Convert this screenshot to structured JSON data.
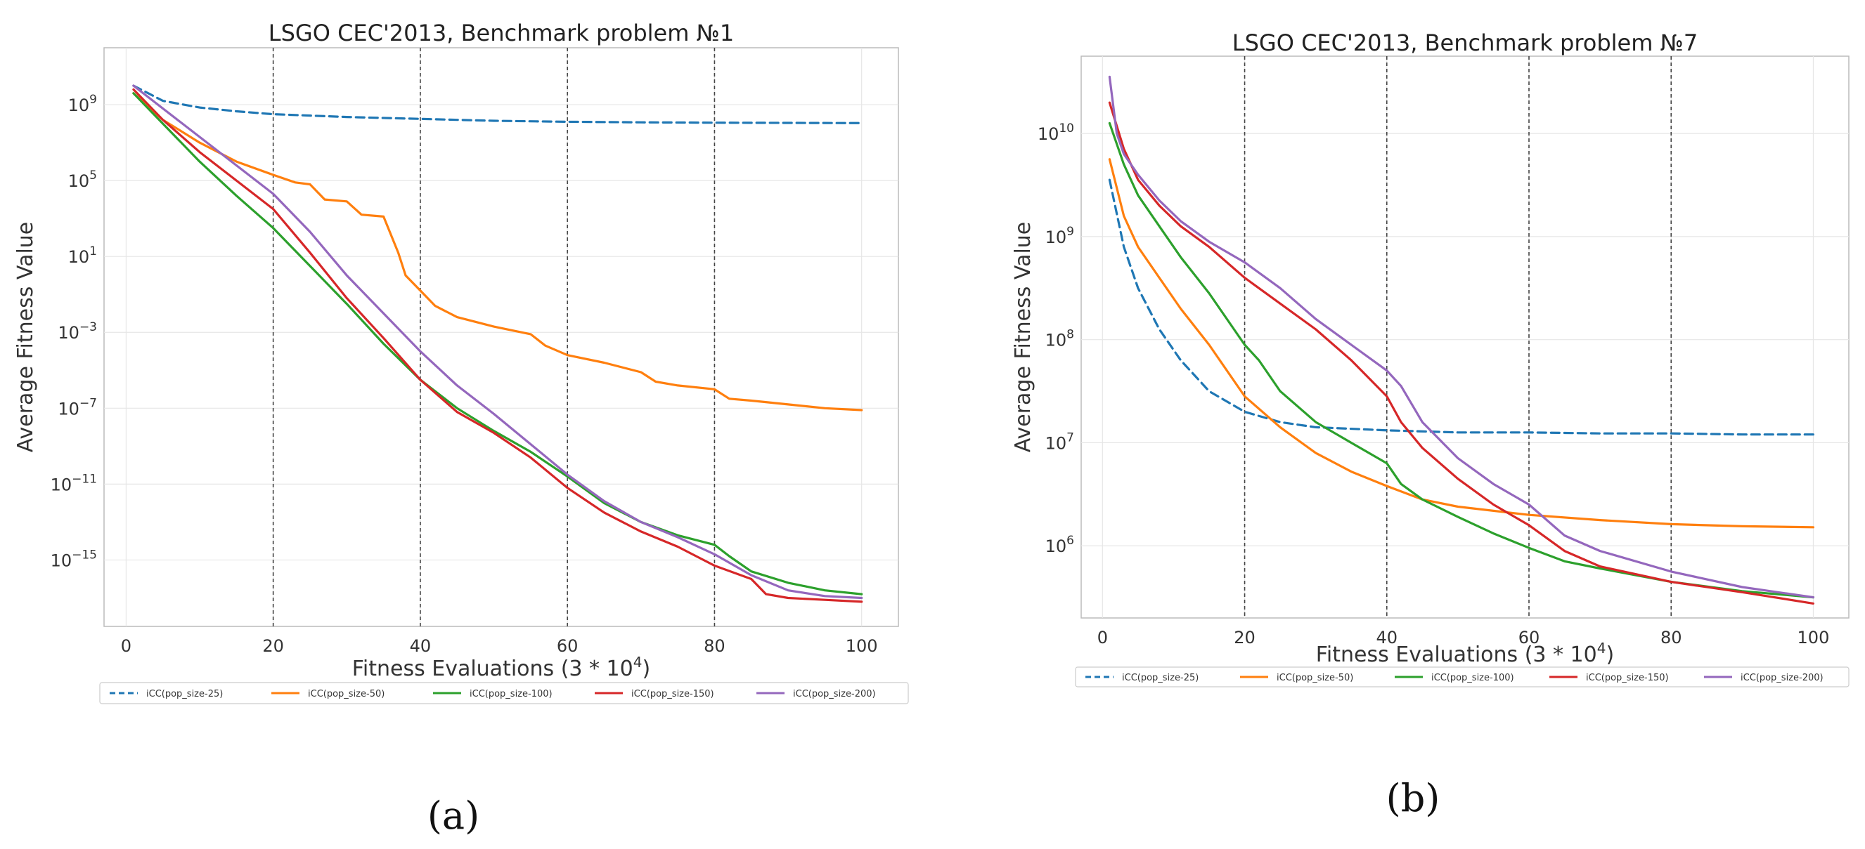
{
  "chart_data": [
    {
      "type": "line",
      "panel_label": "(a)",
      "title": "LSGO CEC'2013, Benchmark problem №1",
      "xlabel": "Fitness Evaluations (3 * 10^4)",
      "xlabel_base": "Fitness Evaluations (3",
      "xlabel_mult": "* 10",
      "xlabel_exp": "4",
      "ylabel": "Average Fitness Value",
      "yscale": "log",
      "xlim": [
        -3,
        105
      ],
      "ylim_exp": [
        -18.5,
        12
      ],
      "x_ticks": [
        0,
        20,
        40,
        60,
        80,
        100
      ],
      "y_ticks": [
        {
          "base": "10",
          "exp": "9",
          "value_exp": 9
        },
        {
          "base": "10",
          "exp": "5",
          "value_exp": 5
        },
        {
          "base": "10",
          "exp": "1",
          "value_exp": 1
        },
        {
          "base": "10",
          "exp": "−3",
          "value_exp": -3
        },
        {
          "base": "10",
          "exp": "−7",
          "value_exp": -7
        },
        {
          "base": "10",
          "exp": "−11",
          "value_exp": -11
        },
        {
          "base": "10",
          "exp": "−15",
          "value_exp": -15
        }
      ],
      "vlines": [
        20,
        40,
        60,
        80
      ],
      "grid": true,
      "legend_position": "below",
      "series": [
        {
          "name": "iCC(pop_size-25)",
          "color": "#1f77b4",
          "dash": true,
          "x": [
            1,
            5,
            10,
            15,
            20,
            30,
            40,
            50,
            60,
            70,
            80,
            90,
            100
          ],
          "log10y": [
            10.0,
            9.2,
            8.85,
            8.65,
            8.5,
            8.35,
            8.25,
            8.15,
            8.1,
            8.07,
            8.05,
            8.04,
            8.03
          ]
        },
        {
          "name": "iCC(pop_size-50)",
          "color": "#ff7f0e",
          "dash": false,
          "x": [
            1,
            5,
            10,
            15,
            20,
            23,
            25,
            27,
            30,
            32,
            35,
            37,
            38,
            40,
            42,
            45,
            50,
            55,
            57,
            60,
            65,
            70,
            72,
            75,
            80,
            82,
            85,
            90,
            95,
            100
          ],
          "log10y": [
            9.6,
            8.2,
            7.0,
            6.0,
            5.3,
            4.9,
            4.8,
            4.0,
            3.9,
            3.2,
            3.1,
            1.2,
            0.0,
            -0.8,
            -1.6,
            -2.2,
            -2.7,
            -3.1,
            -3.7,
            -4.2,
            -4.6,
            -5.1,
            -5.6,
            -5.8,
            -6.0,
            -6.5,
            -6.6,
            -6.8,
            -7.0,
            -7.1
          ]
        },
        {
          "name": "iCC(pop_size-100)",
          "color": "#2ca02c",
          "dash": false,
          "x": [
            1,
            5,
            10,
            15,
            20,
            25,
            30,
            35,
            40,
            45,
            50,
            55,
            60,
            65,
            70,
            75,
            80,
            82,
            85,
            90,
            95,
            100
          ],
          "log10y": [
            9.6,
            8.0,
            6.0,
            4.2,
            2.5,
            0.5,
            -1.5,
            -3.6,
            -5.5,
            -7.0,
            -8.2,
            -9.3,
            -10.6,
            -12.0,
            -13.0,
            -13.7,
            -14.2,
            -14.8,
            -15.6,
            -16.2,
            -16.6,
            -16.8
          ]
        },
        {
          "name": "iCC(pop_size-150)",
          "color": "#d62728",
          "dash": false,
          "x": [
            1,
            5,
            10,
            15,
            20,
            25,
            30,
            35,
            40,
            45,
            50,
            55,
            60,
            65,
            70,
            75,
            80,
            85,
            87,
            90,
            95,
            100
          ],
          "log10y": [
            9.8,
            8.2,
            6.5,
            5.0,
            3.5,
            1.2,
            -1.2,
            -3.3,
            -5.5,
            -7.2,
            -8.3,
            -9.6,
            -11.2,
            -12.5,
            -13.5,
            -14.3,
            -15.3,
            -16.0,
            -16.8,
            -17.0,
            -17.1,
            -17.2
          ]
        },
        {
          "name": "iCC(pop_size-200)",
          "color": "#9467bd",
          "dash": false,
          "x": [
            1,
            5,
            10,
            15,
            20,
            25,
            30,
            35,
            40,
            45,
            50,
            55,
            60,
            65,
            70,
            75,
            80,
            85,
            90,
            95,
            100
          ],
          "log10y": [
            10.0,
            8.8,
            7.3,
            5.8,
            4.3,
            2.3,
            0.0,
            -2.0,
            -4.0,
            -5.8,
            -7.3,
            -8.9,
            -10.5,
            -11.9,
            -13.0,
            -13.8,
            -14.7,
            -15.8,
            -16.6,
            -16.9,
            -17.0
          ]
        }
      ]
    },
    {
      "type": "line",
      "panel_label": "(b)",
      "title": "LSGO CEC'2013, Benchmark problem №7",
      "xlabel": "Fitness Evaluations (3 * 10^4)",
      "xlabel_base": "Fitness Evaluations (3",
      "xlabel_mult": "* 10",
      "xlabel_exp": "4",
      "ylabel": "Average Fitness Value",
      "yscale": "log",
      "xlim": [
        -3,
        105
      ],
      "ylim_exp": [
        5.3,
        10.75
      ],
      "x_ticks": [
        0,
        20,
        40,
        60,
        80,
        100
      ],
      "y_ticks": [
        {
          "base": "10",
          "exp": "10",
          "value_exp": 10
        },
        {
          "base": "10",
          "exp": "9",
          "value_exp": 9
        },
        {
          "base": "10",
          "exp": "8",
          "value_exp": 8
        },
        {
          "base": "10",
          "exp": "7",
          "value_exp": 7
        },
        {
          "base": "10",
          "exp": "6",
          "value_exp": 6
        }
      ],
      "vlines": [
        20,
        40,
        60,
        80
      ],
      "grid": true,
      "legend_position": "below",
      "series": [
        {
          "name": "iCC(pop_size-25)",
          "color": "#1f77b4",
          "dash": true,
          "x": [
            1,
            3,
            5,
            8,
            11,
            15,
            20,
            25,
            30,
            40,
            50,
            60,
            70,
            80,
            90,
            100
          ],
          "log10y": [
            9.55,
            8.9,
            8.5,
            8.1,
            7.8,
            7.5,
            7.3,
            7.2,
            7.15,
            7.12,
            7.1,
            7.1,
            7.09,
            7.09,
            7.08,
            7.08
          ]
        },
        {
          "name": "iCC(pop_size-50)",
          "color": "#ff7f0e",
          "dash": false,
          "x": [
            1,
            3,
            5,
            8,
            11,
            15,
            20,
            25,
            30,
            35,
            40,
            45,
            50,
            60,
            70,
            80,
            90,
            100
          ],
          "log10y": [
            9.75,
            9.2,
            8.9,
            8.6,
            8.3,
            7.95,
            7.45,
            7.15,
            6.9,
            6.72,
            6.58,
            6.45,
            6.38,
            6.3,
            6.25,
            6.21,
            6.19,
            6.18
          ]
        },
        {
          "name": "iCC(pop_size-100)",
          "color": "#2ca02c",
          "dash": false,
          "x": [
            1,
            3,
            5,
            8,
            11,
            15,
            20,
            22,
            25,
            30,
            35,
            40,
            42,
            45,
            50,
            55,
            60,
            65,
            70,
            80,
            90,
            100
          ],
          "log10y": [
            10.1,
            9.7,
            9.4,
            9.1,
            8.8,
            8.45,
            7.95,
            7.8,
            7.5,
            7.2,
            7.0,
            6.8,
            6.6,
            6.45,
            6.28,
            6.12,
            5.98,
            5.85,
            5.78,
            5.65,
            5.56,
            5.5
          ]
        },
        {
          "name": "iCC(pop_size-150)",
          "color": "#d62728",
          "dash": false,
          "x": [
            1,
            3,
            5,
            8,
            11,
            15,
            20,
            25,
            30,
            35,
            40,
            42,
            45,
            50,
            55,
            60,
            65,
            70,
            80,
            90,
            100
          ],
          "log10y": [
            10.3,
            9.85,
            9.55,
            9.3,
            9.1,
            8.9,
            8.6,
            8.35,
            8.1,
            7.8,
            7.45,
            7.2,
            6.95,
            6.65,
            6.4,
            6.2,
            5.95,
            5.8,
            5.65,
            5.55,
            5.44
          ]
        },
        {
          "name": "iCC(pop_size-200)",
          "color": "#9467bd",
          "dash": false,
          "x": [
            1,
            2,
            3,
            5,
            8,
            11,
            15,
            20,
            25,
            30,
            35,
            40,
            42,
            45,
            50,
            55,
            60,
            65,
            70,
            80,
            90,
            100
          ],
          "log10y": [
            10.55,
            10.0,
            9.8,
            9.6,
            9.35,
            9.15,
            8.95,
            8.75,
            8.5,
            8.2,
            7.95,
            7.7,
            7.55,
            7.2,
            6.85,
            6.6,
            6.4,
            6.1,
            5.95,
            5.75,
            5.6,
            5.5
          ]
        }
      ]
    }
  ]
}
